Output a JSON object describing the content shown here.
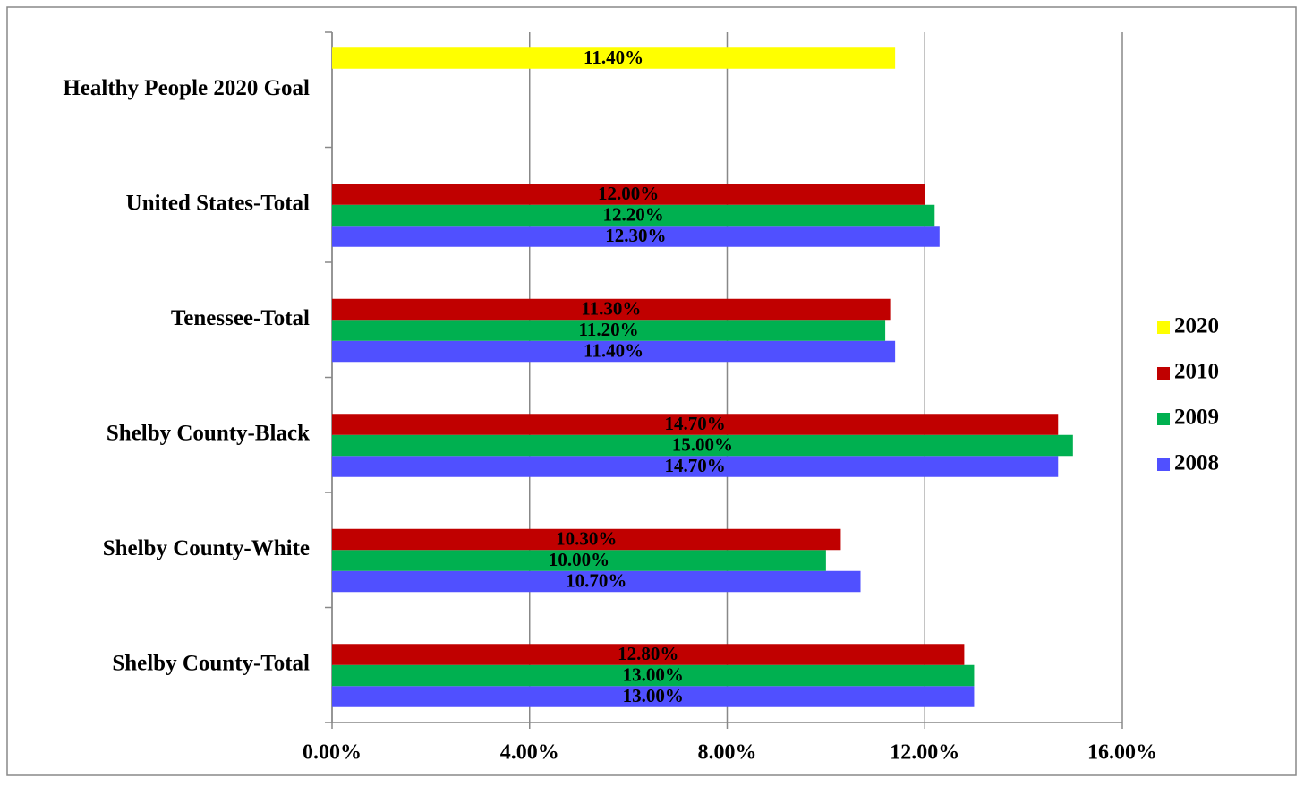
{
  "chart_data": {
    "type": "bar",
    "orientation": "horizontal",
    "categories": [
      "Shelby County-Total",
      "Shelby County-White",
      "Shelby County-Black",
      "Tenessee-Total",
      "United States-Total",
      "Healthy People 2020 Goal"
    ],
    "series": [
      {
        "name": "2008",
        "color": "#5050ff",
        "values": [
          13.0,
          10.7,
          14.7,
          11.4,
          12.3,
          null
        ],
        "value_labels": [
          "13.00%",
          "10.70%",
          "14.70%",
          "11.40%",
          "12.30%",
          null
        ]
      },
      {
        "name": "2009",
        "color": "#00b050",
        "values": [
          13.0,
          10.0,
          15.0,
          11.2,
          12.2,
          null
        ],
        "value_labels": [
          "13.00%",
          "10.00%",
          "15.00%",
          "11.20%",
          "12.20%",
          null
        ]
      },
      {
        "name": "2010",
        "color": "#c00000",
        "values": [
          12.8,
          10.3,
          14.7,
          11.3,
          12.0,
          null
        ],
        "value_labels": [
          "12.80%",
          "10.30%",
          "14.70%",
          "11.30%",
          "12.00%",
          null
        ]
      },
      {
        "name": "2020",
        "color": "#ffff00",
        "values": [
          null,
          null,
          null,
          null,
          null,
          11.4
        ],
        "value_labels": [
          null,
          null,
          null,
          null,
          null,
          "11.40%"
        ]
      }
    ],
    "xlim": [
      0,
      16
    ],
    "xticks": [
      {
        "value": 0,
        "label": "0.00%"
      },
      {
        "value": 4,
        "label": "4.00%"
      },
      {
        "value": 8,
        "label": "8.00%"
      },
      {
        "value": 12,
        "label": "12.00%"
      },
      {
        "value": 16,
        "label": "16.00%"
      }
    ],
    "grid": true,
    "legend": "right"
  }
}
